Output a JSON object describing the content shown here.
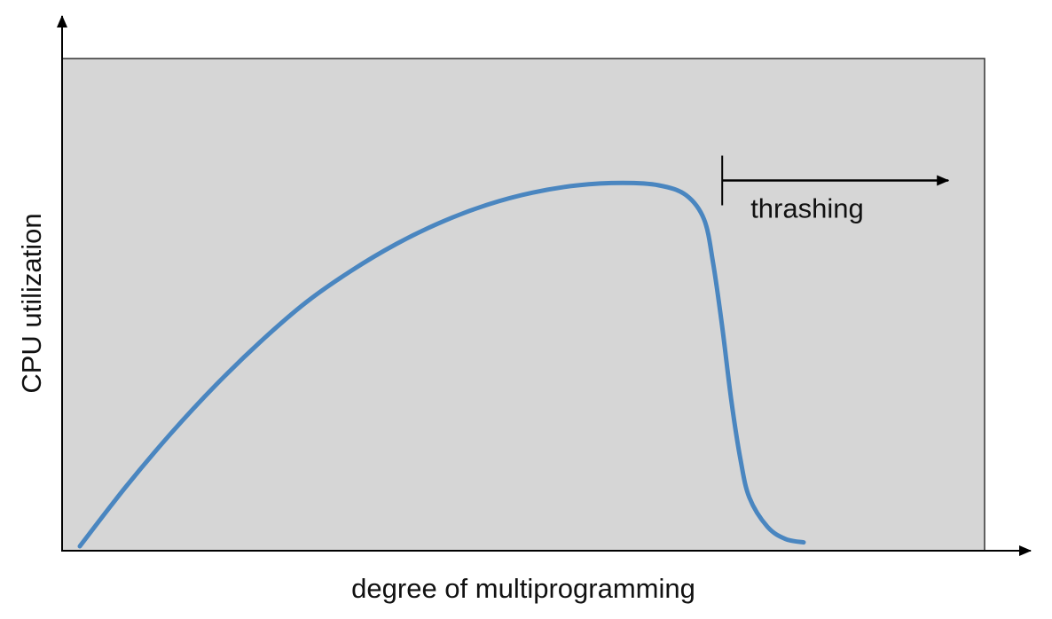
{
  "chart_data": {
    "type": "line",
    "title": "",
    "xlabel": "degree of multiprogramming",
    "ylabel": "CPU utilization",
    "xlim": [
      0,
      100
    ],
    "ylim": [
      0,
      100
    ],
    "grid": false,
    "legend": "none",
    "series": [
      {
        "values_xy": [
          [
            0,
            0
          ],
          [
            5,
            12
          ],
          [
            10,
            23
          ],
          [
            15,
            33
          ],
          [
            20,
            42
          ],
          [
            25,
            50
          ],
          [
            30,
            56.5
          ],
          [
            35,
            62
          ],
          [
            40,
            66.5
          ],
          [
            45,
            70
          ],
          [
            50,
            72.5
          ],
          [
            55,
            74
          ],
          [
            60,
            74.5
          ],
          [
            64,
            74
          ],
          [
            67,
            72
          ],
          [
            69,
            67
          ],
          [
            70,
            58
          ],
          [
            71,
            45
          ],
          [
            72,
            30
          ],
          [
            73,
            18
          ],
          [
            74,
            10
          ],
          [
            76,
            4
          ],
          [
            78,
            1.5
          ],
          [
            80,
            0.8
          ]
        ]
      }
    ],
    "annotations": [
      {
        "text": "thrashing",
        "x_start": 71,
        "x_end": 96,
        "y": 75
      }
    ]
  },
  "colors": {
    "plot_background": "#d6d6d6",
    "curve": "#4a86c0",
    "axis": "#000000"
  }
}
